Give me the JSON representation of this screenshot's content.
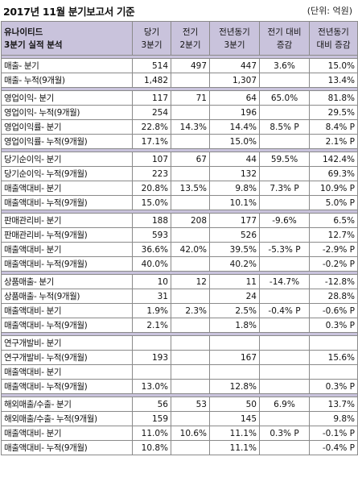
{
  "title": "2017년 11월 분기보고서 기준",
  "unit": "(단위: 억원)",
  "header": {
    "label": [
      "유나이티드",
      "3분기 실적 분석"
    ],
    "cols": [
      [
        "당기",
        "3분기"
      ],
      [
        "전기",
        "2분기"
      ],
      [
        "전년동기",
        "3분기"
      ],
      [
        "전기 대비",
        "증감"
      ],
      [
        "전년동기",
        "대비 증감"
      ]
    ]
  },
  "groups": [
    {
      "rows": [
        {
          "label": "매출- 분기",
          "v": [
            "514",
            "497",
            "447",
            "3.6%",
            "15.0%"
          ]
        },
        {
          "label": "매출- 누적(9개월)",
          "v": [
            "1,482",
            "",
            "1,307",
            "",
            "13.4%"
          ]
        }
      ]
    },
    {
      "rows": [
        {
          "label": "영업이익- 분기",
          "v": [
            "117",
            "71",
            "64",
            "65.0%",
            "81.8%"
          ]
        },
        {
          "label": "영업이익- 누적(9개월)",
          "v": [
            "254",
            "",
            "196",
            "",
            "29.5%"
          ]
        },
        {
          "label": "영업이익률- 분기",
          "v": [
            "22.8%",
            "14.3%",
            "14.4%",
            "8.5% P",
            "8.4% P"
          ]
        },
        {
          "label": "영업이익률- 누적(9개월)",
          "v": [
            "17.1%",
            "",
            "15.0%",
            "",
            "2.1% P"
          ]
        }
      ]
    },
    {
      "rows": [
        {
          "label": "당기순이익- 분기",
          "v": [
            "107",
            "67",
            "44",
            "59.5%",
            "142.4%"
          ]
        },
        {
          "label": "당기순이익- 누적(9개월)",
          "v": [
            "223",
            "",
            "132",
            "",
            "69.3%"
          ]
        },
        {
          "label": "매출액대비- 분기",
          "v": [
            "20.8%",
            "13.5%",
            "9.8%",
            "7.3% P",
            "10.9% P"
          ]
        },
        {
          "label": "매출액대비- 누적(9개월)",
          "v": [
            "15.0%",
            "",
            "10.1%",
            "",
            "5.0% P"
          ]
        }
      ]
    },
    {
      "rows": [
        {
          "label": "판매관리비- 분기",
          "v": [
            "188",
            "208",
            "177",
            "-9.6%",
            "6.5%"
          ]
        },
        {
          "label": "판매관리비- 누적(9개월)",
          "v": [
            "593",
            "",
            "526",
            "",
            "12.7%"
          ]
        },
        {
          "label": "매출액대비- 분기",
          "v": [
            "36.6%",
            "42.0%",
            "39.5%",
            "-5.3% P",
            "-2.9% P"
          ]
        },
        {
          "label": "매출액대비- 누적(9개월)",
          "v": [
            "40.0%",
            "",
            "40.2%",
            "",
            "-0.2% P"
          ]
        }
      ]
    },
    {
      "rows": [
        {
          "label": "상품매출- 분기",
          "v": [
            "10",
            "12",
            "11",
            "-14.7%",
            "-12.8%"
          ]
        },
        {
          "label": "상품매출- 누적(9개월)",
          "v": [
            "31",
            "",
            "24",
            "",
            "28.8%"
          ]
        },
        {
          "label": "매출액대비- 분기",
          "v": [
            "1.9%",
            "2.3%",
            "2.5%",
            "-0.4% P",
            "-0.6% P"
          ]
        },
        {
          "label": "매출액대비- 누적(9개월)",
          "v": [
            "2.1%",
            "",
            "1.8%",
            "",
            "0.3% P"
          ]
        }
      ]
    },
    {
      "rows": [
        {
          "label": "연구개발비- 분기",
          "v": [
            "",
            "",
            "",
            "",
            ""
          ]
        },
        {
          "label": "연구개발비- 누적(9개월)",
          "v": [
            "193",
            "",
            "167",
            "",
            "15.6%"
          ]
        },
        {
          "label": "매출액대비- 분기",
          "v": [
            "",
            "",
            "",
            "",
            ""
          ]
        },
        {
          "label": "매출액대비- 누적(9개월)",
          "v": [
            "13.0%",
            "",
            "12.8%",
            "",
            "0.3% P"
          ]
        }
      ]
    },
    {
      "rows": [
        {
          "label": "해외매출/수출- 분기",
          "v": [
            "56",
            "53",
            "50",
            "6.9%",
            "13.7%"
          ]
        },
        {
          "label": "해외매출/수출- 누적(9개월)",
          "v": [
            "159",
            "",
            "145",
            "",
            "9.8%"
          ]
        },
        {
          "label": "매출액대비- 분기",
          "v": [
            "11.0%",
            "10.6%",
            "11.1%",
            "0.3% P",
            "-0.1% P"
          ]
        },
        {
          "label": "매출액대비- 누적(9개월)",
          "v": [
            "10.8%",
            "",
            "11.1%",
            "",
            "-0.4% P"
          ]
        }
      ]
    }
  ]
}
